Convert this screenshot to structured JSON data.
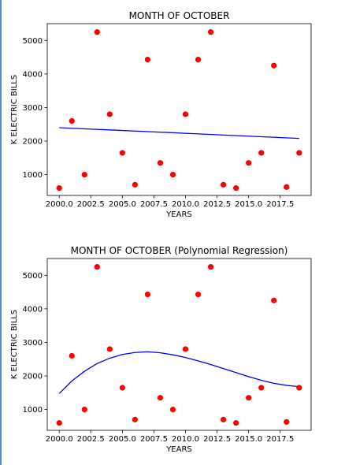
{
  "chart_data": [
    {
      "type": "scatter",
      "title": "MONTH OF OCTOBER",
      "xlabel": "YEARS",
      "ylabel": "K ELECTRIC BILLS",
      "xlim": [
        1999.05,
        2019.95
      ],
      "ylim": [
        380,
        5500
      ],
      "xticks": [
        2000,
        2002.5,
        2005,
        2007.5,
        2010,
        2012.5,
        2015,
        2017.5
      ],
      "xtick_labels": [
        "2000.0",
        "2002.5",
        "2005.0",
        "2007.5",
        "2010.0",
        "2012.5",
        "2015.0",
        "2017.5"
      ],
      "yticks": [
        1000,
        2000,
        3000,
        4000,
        5000
      ],
      "ytick_labels": [
        "1000",
        "2000",
        "3000",
        "4000",
        "5000"
      ],
      "grid": false,
      "point_color": "#ff0000",
      "line_color": "#0000ff",
      "points": {
        "x": [
          2000,
          2001,
          2002,
          2003,
          2004,
          2005,
          2006,
          2007,
          2008,
          2009,
          2010,
          2011,
          2012,
          2013,
          2014,
          2015,
          2016,
          2017,
          2018,
          2019
        ],
        "y": [
          600,
          2600,
          1000,
          5250,
          2800,
          1650,
          700,
          4430,
          1350,
          1000,
          2800,
          4430,
          5250,
          700,
          600,
          1350,
          1650,
          4250,
          630,
          1650
        ]
      },
      "fit": {
        "x": [
          2000,
          2019
        ],
        "y": [
          2400,
          2080
        ]
      }
    },
    {
      "type": "scatter",
      "title": "MONTH OF OCTOBER (Polynomial Regression)",
      "xlabel": "YEARS",
      "ylabel": "K ELECTRIC BILLS",
      "xlim": [
        1999.05,
        2019.95
      ],
      "ylim": [
        380,
        5500
      ],
      "xticks": [
        2000,
        2002.5,
        2005,
        2007.5,
        2010,
        2012.5,
        2015,
        2017.5
      ],
      "xtick_labels": [
        "2000.0",
        "2002.5",
        "2005.0",
        "2007.5",
        "2010.0",
        "2012.5",
        "2015.0",
        "2017.5"
      ],
      "yticks": [
        1000,
        2000,
        3000,
        4000,
        5000
      ],
      "ytick_labels": [
        "1000",
        "2000",
        "3000",
        "4000",
        "5000"
      ],
      "grid": false,
      "point_color": "#ff0000",
      "line_color": "#0000ff",
      "points": {
        "x": [
          2000,
          2001,
          2002,
          2003,
          2004,
          2005,
          2006,
          2007,
          2008,
          2009,
          2010,
          2011,
          2012,
          2013,
          2014,
          2015,
          2016,
          2017,
          2018,
          2019
        ],
        "y": [
          600,
          2600,
          1000,
          5250,
          2800,
          1650,
          700,
          4430,
          1350,
          1000,
          2800,
          4430,
          5250,
          700,
          600,
          1350,
          1650,
          4250,
          630,
          1650
        ]
      },
      "fit": {
        "x": [
          2000,
          2001,
          2002,
          2003,
          2004,
          2005,
          2006,
          2007,
          2008,
          2009,
          2010,
          2011,
          2012,
          2013,
          2014,
          2015,
          2016,
          2017,
          2018,
          2019
        ],
        "y": [
          1480,
          1850,
          2140,
          2370,
          2530,
          2640,
          2700,
          2720,
          2690,
          2630,
          2550,
          2450,
          2340,
          2220,
          2100,
          1980,
          1870,
          1780,
          1720,
          1680
        ]
      }
    }
  ]
}
